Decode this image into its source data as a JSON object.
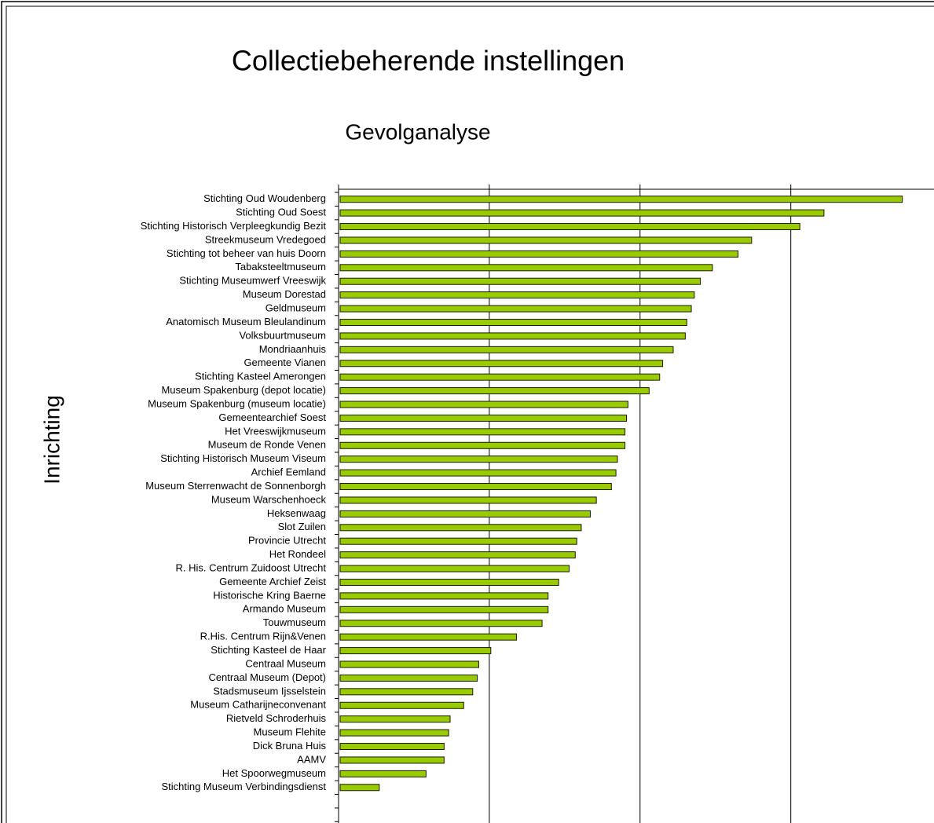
{
  "chart_data": {
    "type": "bar",
    "orientation": "horizontal",
    "title": "Collectiebeherende instellingen",
    "subtitle": "Gevolganalyse",
    "y_label": "Inrichting",
    "color": "#99cc00",
    "categories": [
      "Stichting Oud Woudenberg",
      "Stichting Oud Soest",
      "Stichting Historisch Verpleegkundig Bezit",
      "Streekmuseum Vredegoed",
      "Stichting tot beheer van huis Doorn",
      "Tabaksteeltmuseum",
      "Stichting Museumwerf Vreeswijk",
      "Museum Dorestad",
      "Geldmuseum",
      "Anatomisch Museum Bleulandinum",
      "Volksbuurtmuseum",
      "Mondriaanhuis",
      "Gemeente Vianen",
      "Stichting Kasteel Amerongen",
      "Museum Spakenburg (depot locatie)",
      "Museum Spakenburg (museum locatie)",
      "Gemeentearchief Soest",
      "Het Vreeswijkmuseum",
      "Museum de Ronde Venen",
      "Stichting Historisch Museum Viseum",
      "Archief Eemland",
      "Museum Sterrenwacht de Sonnenborgh",
      "Museum Warschenhoeck",
      "Heksenwaag",
      "Slot Zuilen",
      "Provincie Utrecht",
      "Het Rondeel",
      "R. His. Centrum Zuidoost Utrecht",
      "Gemeente Archief Zeist",
      "Historische Kring Baerne",
      "Armando Museum",
      "Touwmuseum",
      "R.His. Centrum Rijn&Venen",
      "Stichting Kasteel de Haar",
      "Centraal Museum",
      "Centraal Museum (Depot)",
      "Stadsmuseum Ijsselstein",
      "Museum Catharijneconvenant",
      "Rietveld Schroderhuis",
      "Museum Flehite",
      "Dick Bruna Huis",
      "AAMV",
      "Het Spoorwegmuseum",
      "Stichting Museum Verbindingsdienst"
    ],
    "values": [
      3.74,
      3.22,
      3.06,
      2.74,
      2.65,
      2.48,
      2.4,
      2.36,
      2.34,
      2.31,
      2.3,
      2.22,
      2.15,
      2.13,
      2.06,
      1.92,
      1.91,
      1.9,
      1.9,
      1.85,
      1.84,
      1.81,
      1.71,
      1.67,
      1.61,
      1.58,
      1.57,
      1.53,
      1.46,
      1.39,
      1.39,
      1.35,
      1.18,
      1.01,
      0.93,
      0.92,
      0.89,
      0.83,
      0.74,
      0.73,
      0.7,
      0.7,
      0.58,
      0.27
    ],
    "xlim": [
      0,
      3.95
    ],
    "xticks": [
      0,
      1,
      2,
      3
    ],
    "grid": true
  }
}
